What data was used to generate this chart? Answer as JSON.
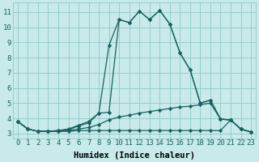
{
  "xlabel": "Humidex (Indice chaleur)",
  "bg_color": "#c8eaea",
  "grid_color": "#8fc8c8",
  "line_color": "#1a6060",
  "xlim": [
    -0.5,
    23.5
  ],
  "ylim": [
    2.7,
    11.6
  ],
  "xticks": [
    0,
    1,
    2,
    3,
    4,
    5,
    6,
    7,
    8,
    9,
    10,
    11,
    12,
    13,
    14,
    15,
    16,
    17,
    18,
    19,
    20,
    21,
    22,
    23
  ],
  "yticks": [
    3,
    4,
    5,
    6,
    7,
    8,
    9,
    10,
    11
  ],
  "series": [
    [
      3.8,
      3.3,
      3.15,
      3.15,
      3.2,
      3.25,
      3.5,
      3.7,
      4.35,
      4.4,
      10.5,
      10.3,
      11.05,
      10.5,
      11.1,
      10.2,
      8.3,
      7.2,
      5.0,
      5.2,
      3.95,
      3.9,
      3.3,
      3.1
    ],
    [
      3.8,
      3.3,
      3.15,
      3.15,
      3.2,
      3.3,
      3.55,
      3.8,
      4.35,
      8.8,
      10.5,
      10.3,
      11.05,
      10.5,
      11.1,
      10.2,
      8.3,
      7.2,
      5.0,
      5.2,
      3.95,
      3.9,
      3.3,
      3.1
    ],
    [
      3.8,
      3.3,
      3.15,
      3.15,
      3.15,
      3.15,
      3.2,
      3.2,
      3.2,
      3.2,
      3.2,
      3.2,
      3.2,
      3.2,
      3.2,
      3.2,
      3.2,
      3.2,
      3.2,
      3.2,
      3.2,
      3.9,
      3.3,
      3.1
    ],
    [
      3.8,
      3.3,
      3.15,
      3.15,
      3.15,
      3.2,
      3.3,
      3.4,
      3.6,
      3.9,
      4.1,
      4.2,
      4.35,
      4.45,
      4.55,
      4.65,
      4.75,
      4.8,
      4.9,
      5.0,
      3.95,
      3.9,
      3.3,
      3.1
    ]
  ],
  "marker": "D",
  "marker_size": 2.2,
  "line_width": 0.9,
  "tick_fontsize": 6.5,
  "label_fontsize": 7.5
}
